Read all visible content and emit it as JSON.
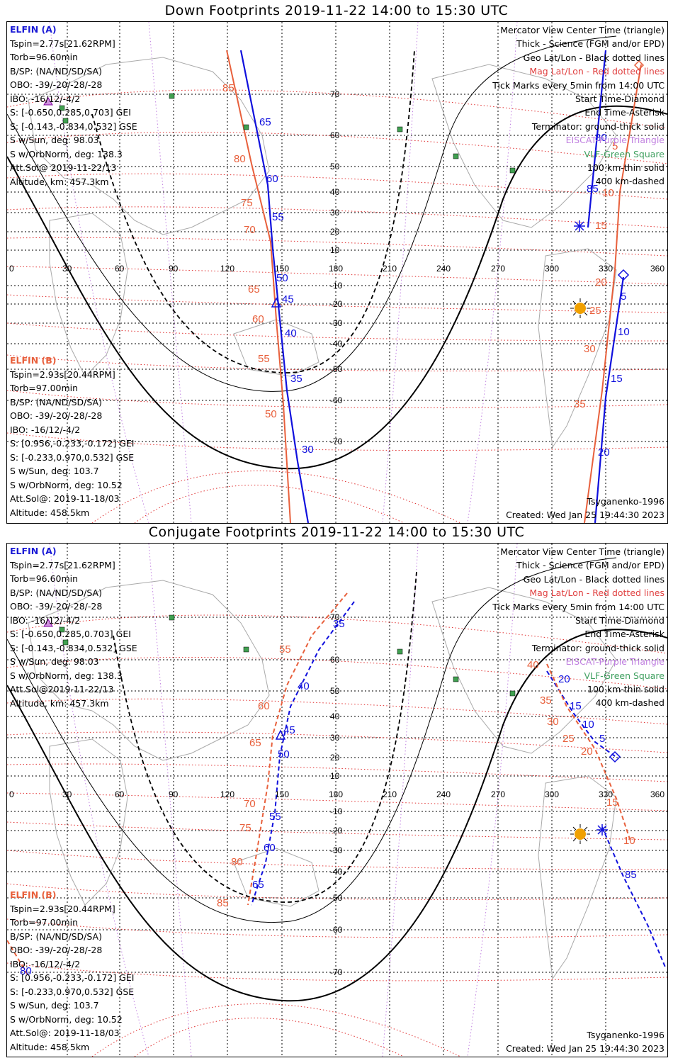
{
  "panels": [
    {
      "title": "Down Footprints 2019-11-22 14:00 to 15:30 UTC",
      "elfin_a": {
        "header": "ELFIN (A)",
        "lines": [
          "Tspin=2.77s[21.62RPM]",
          "Torb=96.60min",
          "B/SP: (NA/ND/SD/SA)",
          "OBO: -39/-20/-28/-28",
          "IBO: -16/12/-4/2",
          "S: [-0.650,0.285,0.703] GEI",
          "S: [-0.143,-0.834,0.532] GSE",
          "S w/Sun, deg: 98.03",
          "S w/OrbNorm, deg: 138.3",
          "Att.Sol@ 2019-11-22/13",
          "Altitude, km: 457.3km"
        ]
      },
      "elfin_b": {
        "header": "ELFIN (B)",
        "lines": [
          "Tspin=2.93s[20.44RPM]",
          "Torb=97.00min",
          "B/SP: (NA/ND/SD/SA)",
          "OBO: -39/-20/-28/-28",
          "IBO: -16/12/-4/2",
          "S: [0.956,-0.233,-0.172] GEI",
          "S: [-0.233,0.970,0.532] GSE",
          "S w/Sun, deg: 103.7",
          "S w/OrbNorm, deg: 10.52",
          "Att.Sol@: 2019-11-18/03",
          "Altitude: 458.5km"
        ]
      },
      "trace_a_labels": [
        "65",
        "60",
        "55",
        "50",
        "45",
        "40",
        "35",
        "30"
      ],
      "trace_b_labels": [
        "85",
        "80",
        "75",
        "70",
        "65",
        "60",
        "55",
        "50"
      ],
      "east_a_labels": [
        "80",
        "85",
        "5",
        "10",
        "15",
        "20"
      ],
      "east_b_labels": [
        "5",
        "10",
        "15",
        "20",
        "25",
        "30",
        "35"
      ]
    },
    {
      "title": "Conjugate Footprints 2019-11-22 14:00 to 15:30 UTC",
      "elfin_a": {
        "header": "ELFIN (A)",
        "lines": [
          "Tspin=2.77s[21.62RPM]",
          "Torb=96.60min",
          "B/SP: (NA/ND/SD/SA)",
          "OBO: -39/-20/-28/-28",
          "IBO: -16/12/-4/2",
          "S: [-0.650,0.285,0.703] GEI",
          "S: [-0.143,-0.834,0.532] GSE",
          "S w/Sun, deg: 98.03",
          "S w/OrbNorm, deg: 138.3",
          "Att.Sol@2019-11-22/13",
          "Altitude, km: 457.3km"
        ]
      },
      "elfin_b": {
        "header": "ELFIN (B)",
        "lines": [
          "Tspin=2.93s[20.44RPM]",
          "Torb=97.00min",
          "B/SP: (NA/ND/SD/SA)",
          "OBO: -39/-20/-28/-28",
          "IBO: -16/12/-4/2",
          "S: [0.956,-0.233,-0.172] GEI",
          "S: [-0.233,0.970,0.532] GSE",
          "S w/Sun, deg: 103.7",
          "S w/OrbNorm, deg: 10.52",
          "Att.Sol@: 2019-11-18/03",
          "Altitude: 458.5km"
        ]
      },
      "trace_a_labels": [
        "35",
        "40",
        "45",
        "50",
        "55",
        "60",
        "65"
      ],
      "trace_b_labels": [
        "55",
        "60",
        "65",
        "70",
        "75",
        "80",
        "85"
      ],
      "east_a_labels": [
        "20",
        "15",
        "10",
        "5",
        "85",
        "80"
      ],
      "east_b_labels": [
        "40",
        "35",
        "30",
        "25",
        "20",
        "15",
        "10"
      ]
    }
  ],
  "legend": {
    "l1": "Mercator View Center Time (triangle)",
    "l2": "Thick - Science (FGM and/or EPD)",
    "l3": "Geo Lat/Lon - Black dotted lines",
    "l4": "Mag Lat/Lon - Red dotted lines",
    "l5": "Tick Marks every 5min from 14:00 UTC",
    "l6": "Start Time-Diamond",
    "l7": "End Time-Asterisk",
    "l8": "Terminator: ground-thick solid",
    "l9": "EISCAT-Purple Triangle",
    "l10": "VLF-Green Square",
    "l11": "100 km-thin solid",
    "l12": "400 km-dashed"
  },
  "footer": {
    "model": "Tsyganenko-1996",
    "created": "Created: Wed Jan 25 19:44:30 2023"
  },
  "axes": {
    "lon_ticks": [
      "0",
      "30",
      "60",
      "90",
      "120",
      "150",
      "180",
      "210",
      "240",
      "270",
      "300",
      "330",
      "360"
    ],
    "lat_ticks": [
      "70",
      "60",
      "50",
      "40",
      "30",
      "20",
      "10",
      "-10",
      "-20",
      "-30",
      "-40",
      "-50",
      "-60",
      "-70"
    ]
  },
  "colors": {
    "elfin_a": "#1010dd",
    "elfin_b": "#e8603c",
    "mag_grid": "#e03030",
    "geo_grid": "#000000",
    "eiscat": "#c060e0",
    "vlf": "#40a050",
    "sun": "#f0a000"
  }
}
